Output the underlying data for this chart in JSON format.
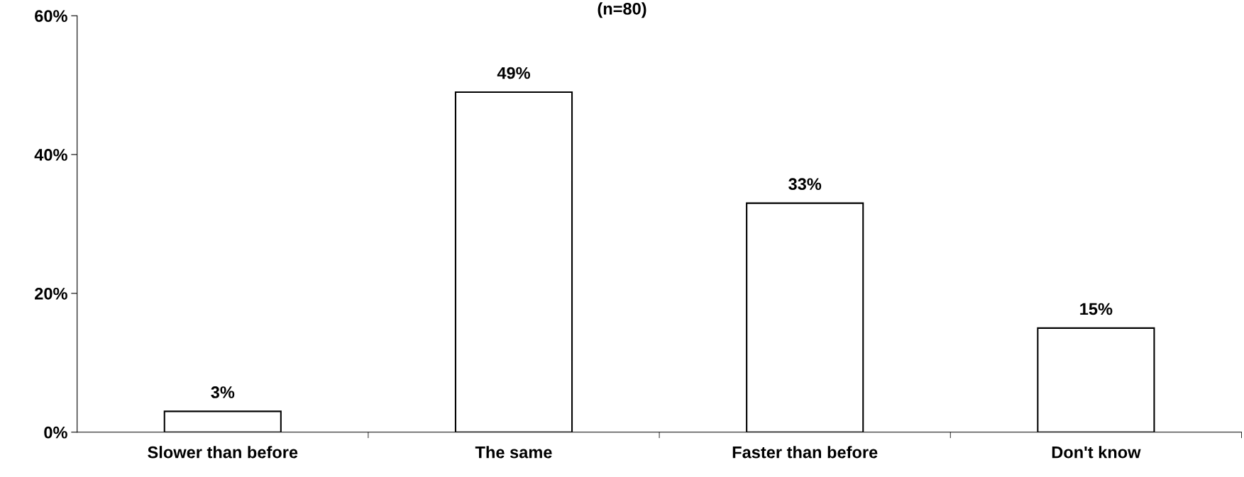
{
  "chart_data": {
    "type": "bar",
    "title": "(n=80)",
    "categories": [
      "Slower than before",
      "The same",
      "Faster than before",
      "Don't know"
    ],
    "values": [
      3,
      49,
      33,
      15
    ],
    "color": "#ffffff",
    "value_labels": [
      "3%",
      "49%",
      "33%",
      "15%"
    ],
    "ylim": [
      0,
      60
    ],
    "yticks": [
      {
        "value": 0,
        "label": "0%"
      },
      {
        "value": 20,
        "label": "20%"
      },
      {
        "value": 40,
        "label": "40%"
      },
      {
        "value": 60,
        "label": "60%"
      }
    ],
    "grid": false,
    "legend": false
  }
}
